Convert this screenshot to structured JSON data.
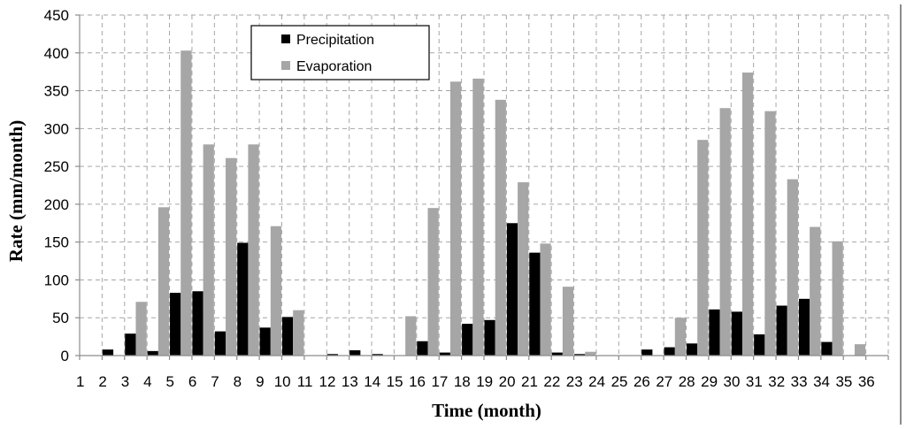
{
  "chart_data": {
    "type": "bar",
    "xlabel": "Time (month)",
    "ylabel": "Rate (mm/month)",
    "ylim": [
      0,
      450
    ],
    "yticks": [
      0,
      50,
      100,
      150,
      200,
      250,
      300,
      350,
      400,
      450
    ],
    "grid": true,
    "legend_placement": "top-left",
    "categories": [
      "1",
      "2",
      "3",
      "4",
      "5",
      "6",
      "7",
      "8",
      "9",
      "10",
      "11",
      "12",
      "13",
      "14",
      "15",
      "16",
      "17",
      "18",
      "19",
      "20",
      "21",
      "22",
      "23",
      "24",
      "25",
      "26",
      "27",
      "28",
      "29",
      "30",
      "31",
      "32",
      "33",
      "34",
      "35",
      "36"
    ],
    "series": [
      {
        "name": "Precipitation",
        "color": "#000000",
        "values": [
          0,
          8,
          29,
          6,
          83,
          85,
          32,
          149,
          37,
          51,
          0,
          2,
          7,
          2,
          0,
          19,
          4,
          42,
          47,
          175,
          136,
          4,
          2,
          0,
          0,
          8,
          11,
          16,
          61,
          58,
          28,
          66,
          75,
          18,
          0,
          0
        ]
      },
      {
        "name": "Evaporation",
        "color": "#a6a6a6",
        "values": [
          0,
          0,
          71,
          196,
          403,
          279,
          261,
          279,
          171,
          60,
          0,
          0,
          0,
          0,
          52,
          195,
          362,
          366,
          338,
          229,
          148,
          91,
          5,
          0,
          0,
          0,
          50,
          285,
          327,
          374,
          323,
          233,
          170,
          151,
          15,
          0
        ]
      }
    ]
  }
}
